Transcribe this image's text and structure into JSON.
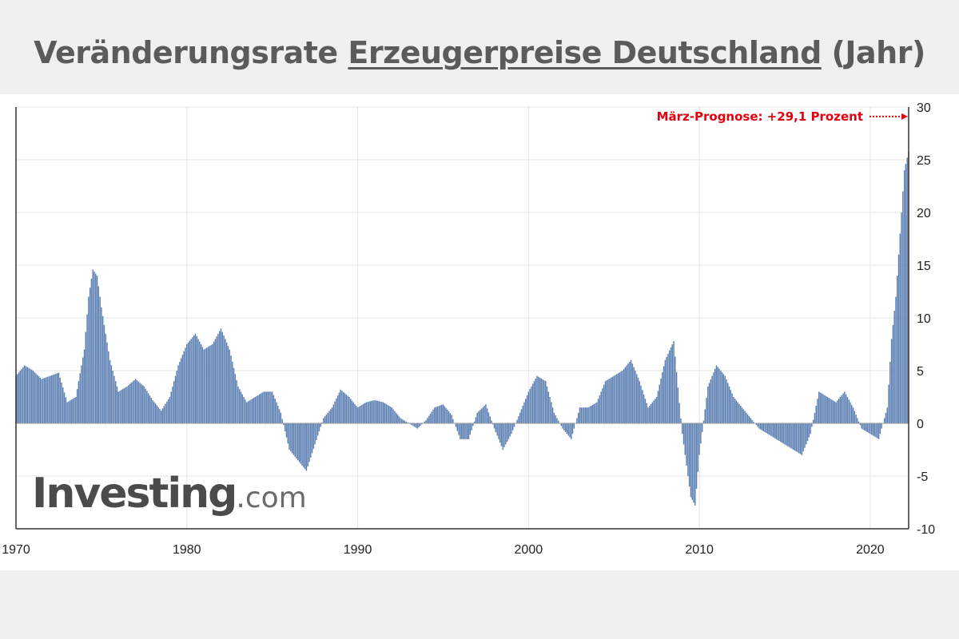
{
  "title": {
    "part1": "Veränderungsrate ",
    "part2": "Erzeugerpreise Deutschland",
    "part3": " (Jahr)"
  },
  "logo": {
    "brand": "Investing",
    "tld": ".com"
  },
  "annotation": {
    "text": "März-Prognose: +29,1 Prozent"
  },
  "colors": {
    "bar": "#5b7fb2",
    "annotation": "#e3000f",
    "grid": "#e4e4e4"
  },
  "chart_data": {
    "type": "bar",
    "title": "Veränderungsrate Erzeugerpreise Deutschland (Jahr)",
    "xlabel": "",
    "ylabel": "",
    "x_ticks": [
      "1970",
      "1980",
      "1990",
      "2000",
      "2010",
      "2020"
    ],
    "y_ticks": [
      "30",
      "25",
      "20",
      "15",
      "10",
      "5",
      "0",
      "-5",
      "-10"
    ],
    "ylim": [
      -10,
      30
    ],
    "xlim": [
      1970,
      2022.25
    ],
    "grid": true,
    "y_axis_side": "right",
    "x": [
      1970.0,
      1970.5,
      1971.0,
      1971.5,
      1972.0,
      1972.5,
      1973.0,
      1973.5,
      1974.0,
      1974.25,
      1974.5,
      1974.75,
      1975.0,
      1975.5,
      1976.0,
      1976.5,
      1977.0,
      1977.5,
      1978.0,
      1978.5,
      1979.0,
      1979.5,
      1980.0,
      1980.5,
      1981.0,
      1981.5,
      1982.0,
      1982.5,
      1983.0,
      1983.5,
      1984.0,
      1984.5,
      1985.0,
      1985.5,
      1986.0,
      1986.5,
      1987.0,
      1987.5,
      1988.0,
      1988.5,
      1989.0,
      1989.5,
      1990.0,
      1990.5,
      1991.0,
      1991.5,
      1992.0,
      1992.5,
      1993.0,
      1993.5,
      1994.0,
      1994.5,
      1995.0,
      1995.5,
      1996.0,
      1996.5,
      1997.0,
      1997.5,
      1998.0,
      1998.5,
      1999.0,
      1999.5,
      2000.0,
      2000.5,
      2001.0,
      2001.5,
      2002.0,
      2002.5,
      2003.0,
      2003.5,
      2004.0,
      2004.5,
      2005.0,
      2005.5,
      2006.0,
      2006.5,
      2007.0,
      2007.5,
      2008.0,
      2008.5,
      2009.0,
      2009.5,
      2009.75,
      2010.0,
      2010.5,
      2011.0,
      2011.5,
      2012.0,
      2012.5,
      2013.0,
      2013.5,
      2014.0,
      2014.5,
      2015.0,
      2015.5,
      2016.0,
      2016.5,
      2017.0,
      2017.5,
      2018.0,
      2018.5,
      2019.0,
      2019.5,
      2020.0,
      2020.5,
      2021.0,
      2021.25,
      2021.5,
      2021.75,
      2022.0,
      2022.25
    ],
    "series": [
      {
        "values": [
          4.5,
          5.5,
          5.0,
          4.2,
          4.5,
          4.8,
          2.0,
          2.5,
          7.0,
          12.0,
          14.6,
          14.0,
          11.0,
          6.0,
          3.0,
          3.5,
          4.2,
          3.5,
          2.2,
          1.2,
          2.5,
          5.5,
          7.5,
          8.5,
          7.0,
          7.5,
          9.0,
          7.0,
          3.5,
          2.0,
          2.5,
          3.0,
          3.0,
          1.0,
          -2.5,
          -3.5,
          -4.5,
          -2.0,
          0.5,
          1.5,
          3.2,
          2.5,
          1.5,
          2.0,
          2.2,
          2.0,
          1.5,
          0.5,
          0.0,
          -0.5,
          0.3,
          1.5,
          1.8,
          0.8,
          -1.5,
          -1.5,
          1.0,
          1.8,
          -0.5,
          -2.5,
          -1.0,
          1.0,
          3.0,
          4.5,
          4.0,
          1.0,
          -0.5,
          -1.5,
          1.5,
          1.5,
          2.0,
          4.0,
          4.5,
          5.0,
          6.0,
          4.0,
          1.5,
          2.5,
          6.0,
          7.8,
          -1.0,
          -7.0,
          -7.8,
          -3.0,
          3.5,
          5.5,
          4.5,
          2.5,
          1.5,
          0.5,
          -0.5,
          -1.0,
          -1.5,
          -2.0,
          -2.5,
          -3.0,
          -1.0,
          3.0,
          2.5,
          2.0,
          3.0,
          1.5,
          -0.5,
          -1.0,
          -1.5,
          1.5,
          8.0,
          12.0,
          18.0,
          24.0,
          25.8
        ]
      }
    ],
    "annotations": [
      {
        "text": "März-Prognose: +29,1 Prozent",
        "value": 29.1,
        "placement": "top-right"
      }
    ]
  }
}
